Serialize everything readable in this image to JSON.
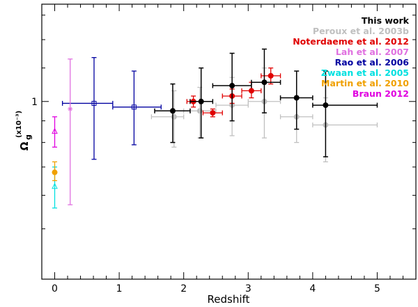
{
  "chart_data": {
    "type": "scatter",
    "xlabel": "Redshift",
    "ylabel": "Ω",
    "ylabel_sub": "g",
    "ylabel_sup": "(x10⁻³)",
    "xlim": [
      -0.2,
      5.6
    ],
    "ylim_log10": [
      -0.42,
      0.23
    ],
    "log_y": true,
    "x_ticks": [
      0,
      1,
      2,
      3,
      4,
      5
    ],
    "x_tick_labels": [
      "0",
      "1",
      "2",
      "3",
      "4",
      "5"
    ],
    "y_ticks": [
      1
    ],
    "y_tick_labels": [
      "1"
    ],
    "y_minor_ticks": [
      0.5,
      0.6,
      0.7,
      0.8,
      0.9,
      1.2,
      1.4,
      1.6
    ],
    "grid": false,
    "legend_position": "top-right",
    "legend": [
      {
        "label": "This work",
        "color": "#000000"
      },
      {
        "label": "Peroux et al. 2003b",
        "color": "#c0c0c0"
      },
      {
        "label": "Noterdaeme et al. 2012",
        "color": "#e00000"
      },
      {
        "label": "Lah et al. 2007",
        "color": "#e070e0"
      },
      {
        "label": "Rao et al. 2006",
        "color": "#0000a0"
      },
      {
        "label": "Zwaan et al. 2005",
        "color": "#00e0e0"
      },
      {
        "label": "Martin et al. 2010",
        "color": "#f0a000"
      },
      {
        "label": "Braun 2012",
        "color": "#e000e0"
      }
    ],
    "series": [
      {
        "name": "This work",
        "color": "#000000",
        "marker": "filled-circle",
        "points": [
          {
            "x": 1.83,
            "y": 0.95,
            "xlo": 1.55,
            "xhi": 2.1,
            "ylo": 0.8,
            "yhi": 1.1
          },
          {
            "x": 2.27,
            "y": 1.0,
            "xlo": 2.1,
            "xhi": 2.45,
            "ylo": 0.82,
            "yhi": 1.2
          },
          {
            "x": 2.75,
            "y": 1.09,
            "xlo": 2.45,
            "xhi": 3.05,
            "ylo": 0.9,
            "yhi": 1.3
          },
          {
            "x": 3.25,
            "y": 1.11,
            "xlo": 3.05,
            "xhi": 3.5,
            "ylo": 0.94,
            "yhi": 1.33
          },
          {
            "x": 3.75,
            "y": 1.02,
            "xlo": 3.5,
            "xhi": 4.0,
            "ylo": 0.86,
            "yhi": 1.18
          },
          {
            "x": 4.2,
            "y": 0.98,
            "xlo": 4.0,
            "xhi": 5.0,
            "ylo": 0.74,
            "yhi": 1.18
          }
        ]
      },
      {
        "name": "Peroux et al. 2003b",
        "color": "#c0c0c0",
        "marker": "filled-circle",
        "points": [
          {
            "x": 1.85,
            "y": 0.92,
            "xlo": 1.5,
            "xhi": 2.0,
            "ylo": 0.78,
            "yhi": 1.06
          },
          {
            "x": 2.25,
            "y": 0.95,
            "xlo": 2.0,
            "xhi": 2.5,
            "ylo": 0.82,
            "yhi": 1.08
          },
          {
            "x": 2.75,
            "y": 0.98,
            "xlo": 2.5,
            "xhi": 3.0,
            "ylo": 0.83,
            "yhi": 1.14
          },
          {
            "x": 3.25,
            "y": 1.0,
            "xlo": 3.0,
            "xhi": 3.5,
            "ylo": 0.82,
            "yhi": 1.2
          },
          {
            "x": 3.75,
            "y": 0.92,
            "xlo": 3.5,
            "xhi": 4.0,
            "ylo": 0.8,
            "yhi": 1.03
          },
          {
            "x": 4.2,
            "y": 0.88,
            "xlo": 4.0,
            "xhi": 5.0,
            "ylo": 0.72,
            "yhi": 1.02
          }
        ]
      },
      {
        "name": "Noterdaeme et al. 2012",
        "color": "#e00000",
        "marker": "filled-circle",
        "points": [
          {
            "x": 2.15,
            "y": 1.0,
            "xlo": 2.05,
            "xhi": 2.25,
            "ylo": 0.97,
            "yhi": 1.03
          },
          {
            "x": 2.45,
            "y": 0.94,
            "xlo": 2.3,
            "xhi": 2.6,
            "ylo": 0.92,
            "yhi": 0.96
          },
          {
            "x": 2.75,
            "y": 1.03,
            "xlo": 2.6,
            "xhi": 2.9,
            "ylo": 0.99,
            "yhi": 1.07
          },
          {
            "x": 3.05,
            "y": 1.06,
            "xlo": 2.9,
            "xhi": 3.2,
            "ylo": 1.02,
            "yhi": 1.11
          },
          {
            "x": 3.35,
            "y": 1.15,
            "xlo": 3.2,
            "xhi": 3.5,
            "ylo": 1.1,
            "yhi": 1.2
          }
        ]
      },
      {
        "name": "Lah et al. 2007",
        "color": "#e070e0",
        "marker": "star",
        "points": [
          {
            "x": 0.24,
            "y": 0.96,
            "xlo": 0.24,
            "xhi": 0.24,
            "ylo": 0.57,
            "yhi": 1.26
          }
        ]
      },
      {
        "name": "Rao et al. 2006",
        "color": "#0000a0",
        "marker": "open-square",
        "points": [
          {
            "x": 0.61,
            "y": 0.99,
            "xlo": 0.12,
            "xhi": 0.9,
            "ylo": 0.73,
            "yhi": 1.27
          },
          {
            "x": 1.23,
            "y": 0.97,
            "xlo": 0.9,
            "xhi": 1.65,
            "ylo": 0.79,
            "yhi": 1.18
          }
        ]
      },
      {
        "name": "Zwaan et al. 2005",
        "color": "#00e0e0",
        "marker": "triangle",
        "points": [
          {
            "x": 0.0,
            "y": 0.63,
            "xlo": 0.0,
            "xhi": 0.0,
            "ylo": 0.56,
            "yhi": 0.7
          }
        ]
      },
      {
        "name": "Martin et al. 2010",
        "color": "#f0a000",
        "marker": "filled-circle",
        "points": [
          {
            "x": 0.0,
            "y": 0.68,
            "xlo": 0.0,
            "xhi": 0.0,
            "ylo": 0.65,
            "yhi": 0.72
          }
        ]
      },
      {
        "name": "Braun 2012",
        "color": "#e000e0",
        "marker": "triangle",
        "points": [
          {
            "x": 0.0,
            "y": 0.85,
            "xlo": 0.0,
            "xhi": 0.0,
            "ylo": 0.78,
            "yhi": 0.92
          }
        ]
      }
    ]
  }
}
